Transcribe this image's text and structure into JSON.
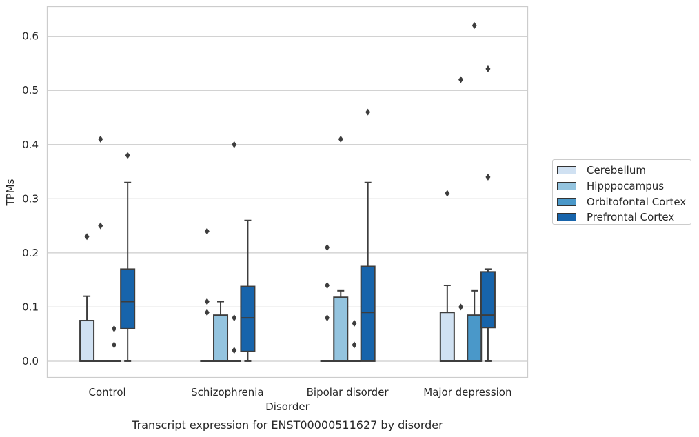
{
  "chart_data": {
    "type": "box",
    "title": "Transcript expression for ENST00000511627 by disorder",
    "xlabel": "Disorder",
    "ylabel": "TPMs",
    "ylim": [
      -0.03,
      0.655
    ],
    "yticks": [
      0.0,
      0.1,
      0.2,
      0.3,
      0.4,
      0.5,
      0.6
    ],
    "ytick_labels": [
      "0.0",
      "0.1",
      "0.2",
      "0.3",
      "0.4",
      "0.5",
      "0.6"
    ],
    "categories": [
      "Control",
      "Schizophrenia",
      "Bipolar disorder",
      "Major depression"
    ],
    "grid": "horizontal",
    "legend_position": "right",
    "series": [
      {
        "name": "Cerebellum",
        "color": "#d0e1f2",
        "boxes": [
          {
            "min": 0.0,
            "q1": 0.0,
            "median": 0.0,
            "q3": 0.075,
            "max": 0.12,
            "outliers": [
              0.23
            ]
          },
          {
            "min": 0.0,
            "q1": 0.0,
            "median": 0.0,
            "q3": 0.0,
            "max": 0.0,
            "outliers": [
              0.24,
              0.11,
              0.09
            ]
          },
          {
            "min": 0.0,
            "q1": 0.0,
            "median": 0.0,
            "q3": 0.0,
            "max": 0.0,
            "outliers": [
              0.21,
              0.14,
              0.08
            ]
          },
          {
            "min": 0.0,
            "q1": 0.0,
            "median": 0.0,
            "q3": 0.09,
            "max": 0.14,
            "outliers": [
              0.31
            ]
          }
        ]
      },
      {
        "name": "Hipppocampus",
        "color": "#94c4df",
        "boxes": [
          {
            "min": 0.0,
            "q1": 0.0,
            "median": 0.0,
            "q3": 0.0,
            "max": 0.0,
            "outliers": [
              0.41,
              0.25
            ]
          },
          {
            "min": 0.0,
            "q1": 0.0,
            "median": 0.0,
            "q3": 0.085,
            "max": 0.11,
            "outliers": []
          },
          {
            "min": 0.0,
            "q1": 0.0,
            "median": 0.0,
            "q3": 0.118,
            "max": 0.13,
            "outliers": [
              0.41
            ]
          },
          {
            "min": 0.0,
            "q1": 0.0,
            "median": 0.0,
            "q3": 0.0,
            "max": 0.0,
            "outliers": [
              0.52,
              0.1
            ]
          }
        ]
      },
      {
        "name": "Orbitofontal Cortex",
        "color": "#4a98c9",
        "boxes": [
          {
            "min": 0.0,
            "q1": 0.0,
            "median": 0.0,
            "q3": 0.0,
            "max": 0.0,
            "outliers": [
              0.06,
              0.03
            ]
          },
          {
            "min": 0.0,
            "q1": 0.0,
            "median": 0.0,
            "q3": 0.0,
            "max": 0.0,
            "outliers": [
              0.4,
              0.08,
              0.02
            ]
          },
          {
            "min": 0.0,
            "q1": 0.0,
            "median": 0.0,
            "q3": 0.0,
            "max": 0.0,
            "outliers": [
              0.07,
              0.03
            ]
          },
          {
            "min": 0.0,
            "q1": 0.0,
            "median": 0.0,
            "q3": 0.085,
            "max": 0.13,
            "outliers": [
              0.62
            ]
          }
        ]
      },
      {
        "name": "Prefrontal Cortex",
        "color": "#1764ab",
        "boxes": [
          {
            "min": 0.0,
            "q1": 0.06,
            "median": 0.11,
            "q3": 0.17,
            "max": 0.33,
            "outliers": [
              0.38
            ]
          },
          {
            "min": 0.0,
            "q1": 0.018,
            "median": 0.08,
            "q3": 0.138,
            "max": 0.26,
            "outliers": []
          },
          {
            "min": 0.0,
            "q1": 0.0,
            "median": 0.09,
            "q3": 0.175,
            "max": 0.33,
            "outliers": [
              0.46
            ]
          },
          {
            "min": 0.0,
            "q1": 0.062,
            "median": 0.085,
            "q3": 0.165,
            "max": 0.17,
            "outliers": [
              0.54,
              0.34
            ]
          }
        ]
      }
    ]
  }
}
